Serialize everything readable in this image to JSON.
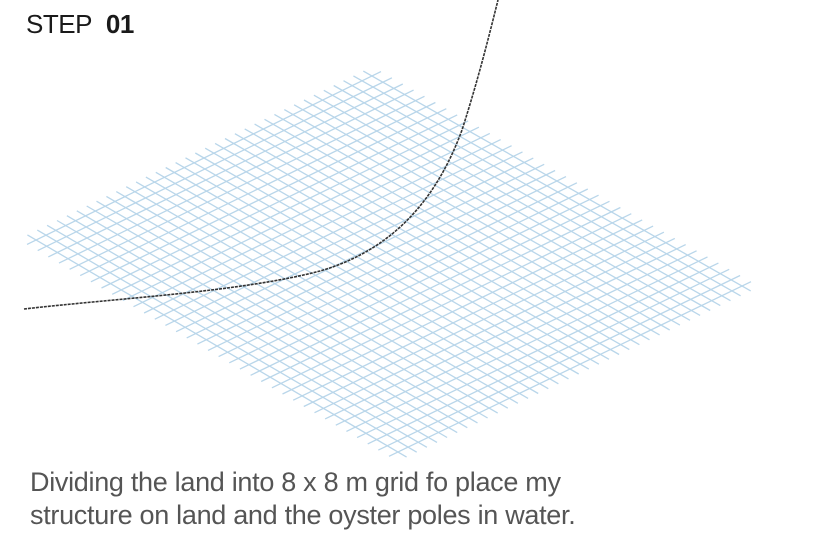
{
  "step": {
    "word": "STEP",
    "number": "01"
  },
  "caption": {
    "line1": "Dividing the land into 8 x 8 m grid fo place my",
    "line2": "structure on land and the oyster poles in water."
  },
  "grid": {
    "color": "#b9d6ea",
    "divisions_u": 34,
    "divisions_v": 34
  },
  "shoreline": {
    "color": "#333333"
  }
}
